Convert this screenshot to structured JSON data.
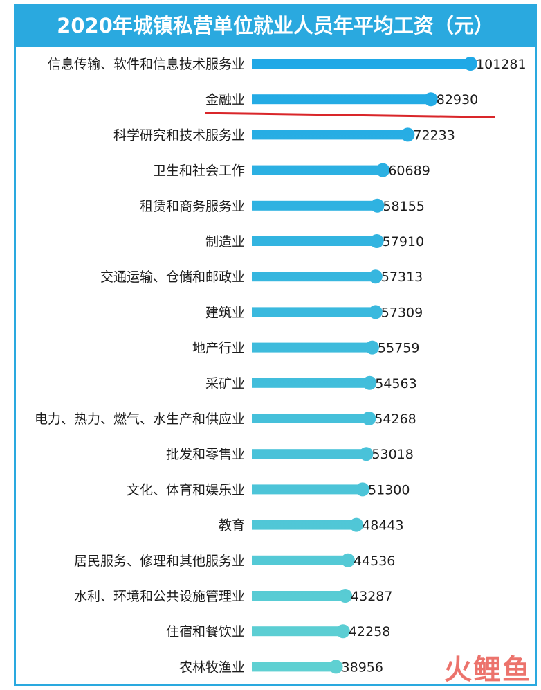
{
  "title": "2020年城镇私营单位就业人员年平均工资（元）",
  "watermark": "火鲤鱼",
  "colors": {
    "title_bg": "#2aa9df",
    "bar_top": "#1fa8e6",
    "bar_bottom": "#5fd0d2",
    "underline": "#d9262a"
  },
  "chart_data": {
    "type": "bar",
    "orientation": "horizontal",
    "title": "2020年城镇私营单位就业人员年平均工资（元）",
    "xlabel": "",
    "ylabel": "",
    "xlim": [
      0,
      101281
    ],
    "grid": false,
    "highlighted_category": "金融业",
    "categories": [
      "信息传输、软件和信息技术服务业",
      "金融业",
      "科学研究和技术服务业",
      "卫生和社会工作",
      "租赁和商务服务业",
      "制造业",
      "交通运输、仓储和邮政业",
      "建筑业",
      "地产行业",
      "采矿业",
      "电力、热力、燃气、水生产和供应业",
      "批发和零售业",
      "文化、体育和娱乐业",
      "教育",
      "居民服务、修理和其他服务业",
      "水利、环境和公共设施管理业",
      "住宿和餐饮业",
      "农林牧渔业"
    ],
    "values": [
      101281,
      82930,
      72233,
      60689,
      58155,
      57910,
      57313,
      57309,
      55759,
      54563,
      54268,
      53018,
      51300,
      48443,
      44536,
      43287,
      42258,
      38956
    ]
  }
}
